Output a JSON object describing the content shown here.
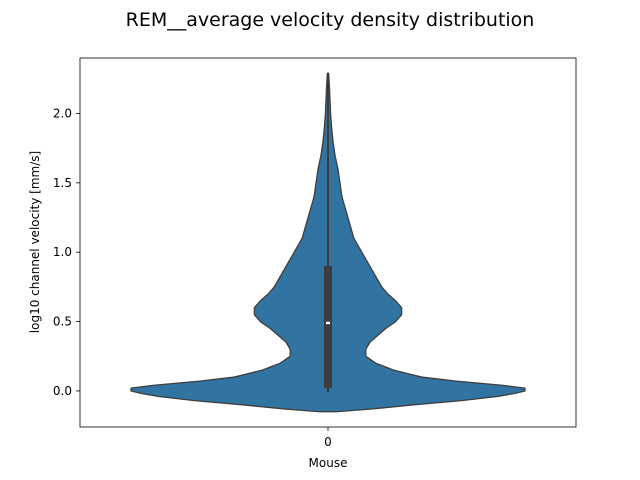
{
  "chart_data": {
    "type": "violin",
    "title": "REM__average velocity density distribution",
    "xlabel": "Mouse",
    "ylabel": "log10 channel velocity [mm/s]",
    "categories": [
      "0"
    ],
    "ylim": [
      -0.26,
      2.4
    ],
    "yticks": [
      "0.0",
      "0.5",
      "1.0",
      "1.5",
      "2.0"
    ],
    "grid": false,
    "violin_color": "#3274a1",
    "box_color": "#3d3d3d",
    "median_color": "#ffffff",
    "series": [
      {
        "category": "0",
        "min": -0.01,
        "q1": 0.02,
        "median": 0.49,
        "q3": 0.9,
        "max": 2.29,
        "kde_extent": [
          -0.15,
          2.29
        ],
        "density": [
          [
            -0.15,
            0.04
          ],
          [
            -0.13,
            0.22
          ],
          [
            -0.1,
            0.43
          ],
          [
            -0.07,
            0.67
          ],
          [
            -0.04,
            0.85
          ],
          [
            -0.02,
            0.93
          ],
          [
            0.0,
            0.99
          ],
          [
            0.02,
            0.99
          ],
          [
            0.04,
            0.88
          ],
          [
            0.07,
            0.65
          ],
          [
            0.1,
            0.47
          ],
          [
            0.15,
            0.33
          ],
          [
            0.2,
            0.24
          ],
          [
            0.25,
            0.19
          ],
          [
            0.3,
            0.19
          ],
          [
            0.35,
            0.21
          ],
          [
            0.4,
            0.25
          ],
          [
            0.45,
            0.29
          ],
          [
            0.5,
            0.34
          ],
          [
            0.55,
            0.37
          ],
          [
            0.6,
            0.37
          ],
          [
            0.65,
            0.34
          ],
          [
            0.7,
            0.3
          ],
          [
            0.75,
            0.27
          ],
          [
            0.8,
            0.25
          ],
          [
            0.85,
            0.23
          ],
          [
            0.9,
            0.21
          ],
          [
            0.95,
            0.19
          ],
          [
            1.0,
            0.17
          ],
          [
            1.05,
            0.15
          ],
          [
            1.1,
            0.13
          ],
          [
            1.2,
            0.11
          ],
          [
            1.3,
            0.09
          ],
          [
            1.4,
            0.07
          ],
          [
            1.5,
            0.06
          ],
          [
            1.6,
            0.05
          ],
          [
            1.7,
            0.035
          ],
          [
            1.8,
            0.025
          ],
          [
            1.9,
            0.018
          ],
          [
            2.0,
            0.013
          ],
          [
            2.1,
            0.01
          ],
          [
            2.2,
            0.007
          ],
          [
            2.29,
            0.003
          ]
        ]
      }
    ]
  }
}
